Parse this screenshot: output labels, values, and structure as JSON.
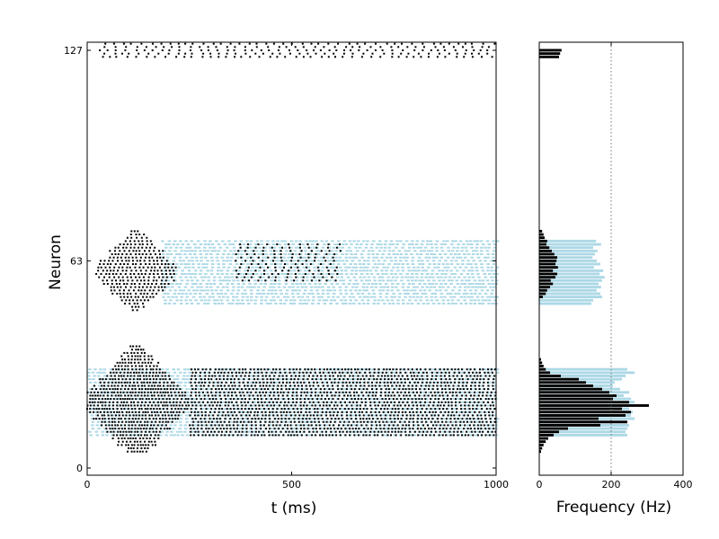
{
  "chart_data": [
    {
      "type": "scatter",
      "title": "",
      "xlabel": "t (ms)",
      "ylabel": "Neuron",
      "xlim": [
        0,
        1000
      ],
      "ylim": [
        -2,
        129
      ],
      "xticks": [
        0,
        500,
        1000
      ],
      "yticks": [
        0,
        63,
        127
      ],
      "grid": false,
      "legend": "none",
      "series": [
        {
          "color": "#000000",
          "marker": "dot",
          "groups": [
            {
              "neurons": [
                125,
                129
              ],
              "t_start": 30,
              "t_end": 1000,
              "interval": 22
            },
            {
              "neurons": [
                48,
                72
              ],
              "t_start": 20,
              "t_end": 220,
              "interval": 10,
              "peak_t": 120,
              "peak_neuron": 60
            },
            {
              "neurons": [
                57,
                68
              ],
              "t_start": 360,
              "t_end": 620,
              "interval": 22
            },
            {
              "neurons": [
                5,
                37
              ],
              "t_start": 0,
              "t_end": 250,
              "interval": 8,
              "peak_t": 120,
              "peak_neuron": 20
            },
            {
              "neurons": [
                10,
                30
              ],
              "t_start": 250,
              "t_end": 1000,
              "interval": 10
            }
          ]
        },
        {
          "color": "#add8e6",
          "marker": "dash",
          "groups": [
            {
              "neurons": [
                50,
                69
              ],
              "t_start": 180,
              "t_end": 1000,
              "interval": 12
            },
            {
              "neurons": [
                10,
                30
              ],
              "t_start": 0,
              "t_end": 1000,
              "interval": 12
            }
          ]
        }
      ]
    },
    {
      "type": "bar",
      "orientation": "horizontal",
      "title": "",
      "xlabel": "Frequency (Hz)",
      "ylabel": "",
      "xlim": [
        0,
        400
      ],
      "xticks": [
        0,
        200,
        400
      ],
      "reference_line": 200,
      "series": [
        {
          "color": "#add8e6",
          "bars": [
            {
              "neuron": 69,
              "value": 158
            },
            {
              "neuron": 68,
              "value": 172
            },
            {
              "neuron": 67,
              "value": 150
            },
            {
              "neuron": 66,
              "value": 162
            },
            {
              "neuron": 65,
              "value": 155
            },
            {
              "neuron": 64,
              "value": 148
            },
            {
              "neuron": 63,
              "value": 160
            },
            {
              "neuron": 62,
              "value": 170
            },
            {
              "neuron": 61,
              "value": 152
            },
            {
              "neuron": 60,
              "value": 178
            },
            {
              "neuron": 59,
              "value": 168
            },
            {
              "neuron": 58,
              "value": 182
            },
            {
              "neuron": 57,
              "value": 175
            },
            {
              "neuron": 56,
              "value": 165
            },
            {
              "neuron": 55,
              "value": 172
            },
            {
              "neuron": 54,
              "value": 160
            },
            {
              "neuron": 53,
              "value": 170
            },
            {
              "neuron": 52,
              "value": 175
            },
            {
              "neuron": 51,
              "value": 150
            },
            {
              "neuron": 50,
              "value": 145
            },
            {
              "neuron": 30,
              "value": 245
            },
            {
              "neuron": 29,
              "value": 265
            },
            {
              "neuron": 28,
              "value": 240
            },
            {
              "neuron": 27,
              "value": 230
            },
            {
              "neuron": 26,
              "value": 210
            },
            {
              "neuron": 25,
              "value": 205
            },
            {
              "neuron": 24,
              "value": 225
            },
            {
              "neuron": 23,
              "value": 250
            },
            {
              "neuron": 22,
              "value": 235
            },
            {
              "neuron": 21,
              "value": 255
            },
            {
              "neuron": 20,
              "value": 265
            },
            {
              "neuron": 19,
              "value": 245
            },
            {
              "neuron": 18,
              "value": 250
            },
            {
              "neuron": 17,
              "value": 260
            },
            {
              "neuron": 16,
              "value": 255
            },
            {
              "neuron": 15,
              "value": 265
            },
            {
              "neuron": 14,
              "value": 240
            },
            {
              "neuron": 13,
              "value": 250
            },
            {
              "neuron": 12,
              "value": 245
            },
            {
              "neuron": 11,
              "value": 240
            },
            {
              "neuron": 10,
              "value": 245
            }
          ]
        },
        {
          "color": "#000000",
          "bars": [
            {
              "neuron": 127,
              "value": 62
            },
            {
              "neuron": 126,
              "value": 58
            },
            {
              "neuron": 125,
              "value": 55
            },
            {
              "neuron": 72,
              "value": 8
            },
            {
              "neuron": 71,
              "value": 12
            },
            {
              "neuron": 70,
              "value": 15
            },
            {
              "neuron": 69,
              "value": 22
            },
            {
              "neuron": 68,
              "value": 20
            },
            {
              "neuron": 67,
              "value": 28
            },
            {
              "neuron": 66,
              "value": 35
            },
            {
              "neuron": 65,
              "value": 42
            },
            {
              "neuron": 64,
              "value": 50
            },
            {
              "neuron": 63,
              "value": 48
            },
            {
              "neuron": 62,
              "value": 45
            },
            {
              "neuron": 61,
              "value": 52
            },
            {
              "neuron": 60,
              "value": 38
            },
            {
              "neuron": 59,
              "value": 50
            },
            {
              "neuron": 58,
              "value": 45
            },
            {
              "neuron": 57,
              "value": 32
            },
            {
              "neuron": 56,
              "value": 38
            },
            {
              "neuron": 55,
              "value": 30
            },
            {
              "neuron": 54,
              "value": 22
            },
            {
              "neuron": 53,
              "value": 18
            },
            {
              "neuron": 52,
              "value": 10
            },
            {
              "neuron": 33,
              "value": 5
            },
            {
              "neuron": 32,
              "value": 8
            },
            {
              "neuron": 31,
              "value": 12
            },
            {
              "neuron": 30,
              "value": 18
            },
            {
              "neuron": 29,
              "value": 30
            },
            {
              "neuron": 28,
              "value": 60
            },
            {
              "neuron": 27,
              "value": 110
            },
            {
              "neuron": 26,
              "value": 130
            },
            {
              "neuron": 25,
              "value": 150
            },
            {
              "neuron": 24,
              "value": 175
            },
            {
              "neuron": 23,
              "value": 195
            },
            {
              "neuron": 22,
              "value": 215
            },
            {
              "neuron": 21,
              "value": 205
            },
            {
              "neuron": 20,
              "value": 250
            },
            {
              "neuron": 19,
              "value": 305
            },
            {
              "neuron": 18,
              "value": 230
            },
            {
              "neuron": 17,
              "value": 255
            },
            {
              "neuron": 16,
              "value": 240
            },
            {
              "neuron": 15,
              "value": 165
            },
            {
              "neuron": 14,
              "value": 245
            },
            {
              "neuron": 13,
              "value": 170
            },
            {
              "neuron": 12,
              "value": 80
            },
            {
              "neuron": 11,
              "value": 55
            },
            {
              "neuron": 10,
              "value": 40
            },
            {
              "neuron": 9,
              "value": 25
            },
            {
              "neuron": 8,
              "value": 18
            },
            {
              "neuron": 7,
              "value": 12
            },
            {
              "neuron": 6,
              "value": 8
            },
            {
              "neuron": 5,
              "value": 5
            }
          ]
        }
      ]
    }
  ]
}
